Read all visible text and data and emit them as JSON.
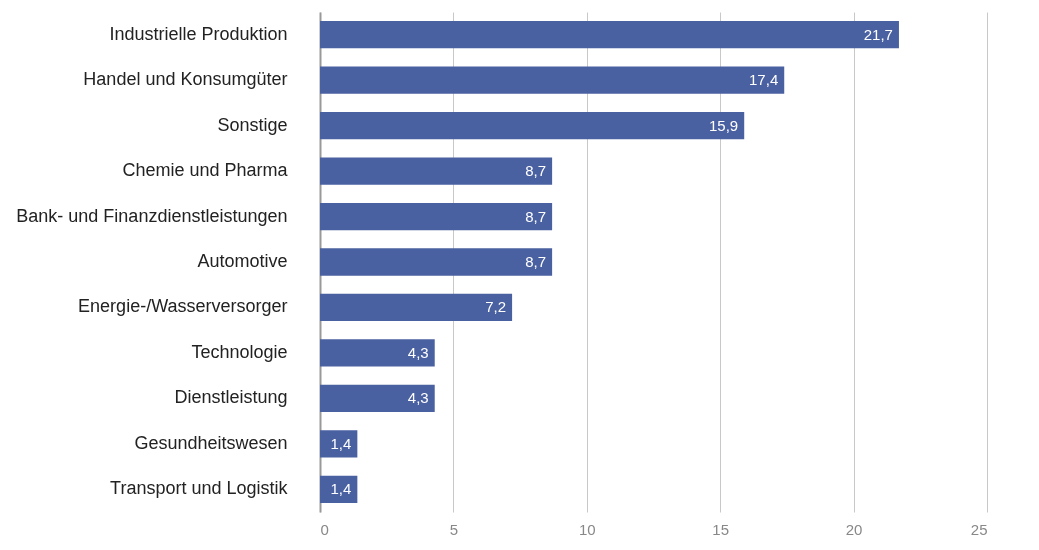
{
  "chart_data": {
    "type": "bar",
    "orientation": "horizontal",
    "categories": [
      "Industrielle Produktion",
      "Handel und Konsumgüter",
      "Sonstige",
      "Chemie und Pharma",
      "Bank- und Finanzdienstleistungen",
      "Automotive",
      "Energie-/Wasserversorger",
      "Technologie",
      "Dienstleistung",
      "Gesundheitswesen",
      "Transport und Logistik"
    ],
    "values": [
      21.7,
      17.4,
      15.9,
      8.7,
      8.7,
      8.7,
      7.2,
      4.3,
      4.3,
      1.4,
      1.4
    ],
    "value_labels": [
      "21,7",
      "17,4",
      "15,9",
      "8,7",
      "8,7",
      "8,7",
      "7,2",
      "4,3",
      "4,3",
      "1,4",
      "1,4"
    ],
    "color": "#4a61a1",
    "xlim": [
      0,
      25
    ],
    "xticks": [
      0,
      5,
      10,
      15,
      20,
      25
    ],
    "grid": "x"
  }
}
